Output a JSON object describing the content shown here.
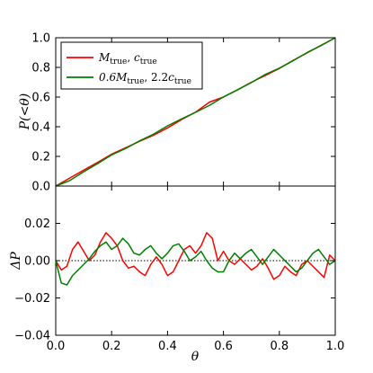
{
  "chart_data": [
    {
      "type": "line",
      "panel": "top",
      "ylabel": "P(<θ)",
      "xlim": [
        0.0,
        1.0
      ],
      "ylim": [
        0.0,
        1.0
      ],
      "xticks": [
        0.0,
        0.2,
        0.4,
        0.6,
        0.8,
        1.0
      ],
      "xtick_labels": [
        "",
        "",
        "",
        "",
        "",
        ""
      ],
      "yticks": [
        0.0,
        0.2,
        0.4,
        0.6,
        0.8,
        1.0
      ],
      "ytick_labels": [
        "0.0",
        "0.2",
        "0.4",
        "0.6",
        "0.8",
        "1.0"
      ],
      "legend_position": "top-left",
      "series": [
        {
          "name": "M_true, c_true",
          "legend_main": "M",
          "legend_sub": "true",
          "legend_sep": ", ",
          "legend_main2": "c",
          "legend_sub2": "true",
          "color": "#ff0000",
          "x": [
            0.0,
            0.05,
            0.1,
            0.15,
            0.2,
            0.25,
            0.3,
            0.35,
            0.4,
            0.45,
            0.5,
            0.55,
            0.6,
            0.65,
            0.7,
            0.75,
            0.8,
            0.85,
            0.9,
            0.95,
            1.0
          ],
          "y": [
            0.0,
            0.054,
            0.107,
            0.16,
            0.215,
            0.258,
            0.302,
            0.343,
            0.392,
            0.448,
            0.498,
            0.566,
            0.6,
            0.649,
            0.7,
            0.746,
            0.793,
            0.848,
            0.899,
            0.95,
            1.0
          ]
        },
        {
          "name": "0.6M_true, 2.2c_true",
          "legend_main": "0.6M",
          "legend_sub": "true",
          "legend_sep": ", 2.2",
          "legend_main2": "c",
          "legend_sub2": "true",
          "color": "#008000",
          "x": [
            0.0,
            0.05,
            0.1,
            0.15,
            0.2,
            0.25,
            0.3,
            0.35,
            0.4,
            0.45,
            0.5,
            0.55,
            0.6,
            0.65,
            0.7,
            0.75,
            0.8,
            0.85,
            0.9,
            0.95,
            1.0
          ],
          "y": [
            0.0,
            0.037,
            0.096,
            0.152,
            0.21,
            0.253,
            0.305,
            0.35,
            0.406,
            0.453,
            0.497,
            0.544,
            0.601,
            0.648,
            0.698,
            0.753,
            0.795,
            0.846,
            0.901,
            0.948,
            1.0
          ]
        }
      ]
    },
    {
      "type": "line",
      "panel": "bottom",
      "xlabel": "θ",
      "ylabel": "ΔP",
      "xlim": [
        0.0,
        1.0
      ],
      "ylim": [
        -0.04,
        0.04
      ],
      "xticks": [
        0.0,
        0.2,
        0.4,
        0.6,
        0.8,
        1.0
      ],
      "xtick_labels": [
        "0.0",
        "0.2",
        "0.4",
        "0.6",
        "0.8",
        "1.0"
      ],
      "yticks": [
        -0.04,
        -0.02,
        0.0,
        0.02
      ],
      "ytick_labels": [
        "−0.04",
        "−0.02",
        "0.00",
        "0.02"
      ],
      "reference_line": 0.0,
      "series": [
        {
          "name": "M_true, c_true",
          "color": "#ff0000",
          "x": [
            0.0,
            0.02,
            0.04,
            0.06,
            0.08,
            0.1,
            0.12,
            0.14,
            0.16,
            0.18,
            0.2,
            0.22,
            0.24,
            0.26,
            0.28,
            0.3,
            0.32,
            0.34,
            0.36,
            0.38,
            0.4,
            0.42,
            0.44,
            0.46,
            0.48,
            0.5,
            0.52,
            0.54,
            0.56,
            0.58,
            0.6,
            0.62,
            0.64,
            0.66,
            0.68,
            0.7,
            0.72,
            0.74,
            0.76,
            0.78,
            0.8,
            0.82,
            0.84,
            0.86,
            0.88,
            0.9,
            0.92,
            0.94,
            0.96,
            0.98,
            1.0
          ],
          "y": [
            0.0,
            -0.005,
            -0.003,
            0.006,
            0.01,
            0.005,
            0.0,
            0.003,
            0.01,
            0.015,
            0.012,
            0.008,
            0.0,
            -0.004,
            -0.003,
            -0.006,
            -0.008,
            -0.002,
            0.002,
            -0.002,
            -0.008,
            -0.006,
            0.0,
            0.006,
            0.008,
            0.004,
            0.008,
            0.015,
            0.012,
            0.0,
            0.005,
            0.0,
            -0.002,
            0.001,
            -0.002,
            -0.005,
            -0.003,
            0.001,
            -0.004,
            -0.01,
            -0.008,
            -0.003,
            -0.006,
            -0.008,
            -0.002,
            0.0,
            -0.003,
            -0.006,
            -0.009,
            0.003,
            0.0
          ]
        },
        {
          "name": "0.6M_true, 2.2c_true",
          "color": "#008000",
          "x": [
            0.0,
            0.02,
            0.04,
            0.06,
            0.08,
            0.1,
            0.12,
            0.14,
            0.16,
            0.18,
            0.2,
            0.22,
            0.24,
            0.26,
            0.28,
            0.3,
            0.32,
            0.34,
            0.36,
            0.38,
            0.4,
            0.42,
            0.44,
            0.46,
            0.48,
            0.5,
            0.52,
            0.54,
            0.56,
            0.58,
            0.6,
            0.62,
            0.64,
            0.66,
            0.68,
            0.7,
            0.72,
            0.74,
            0.76,
            0.78,
            0.8,
            0.82,
            0.84,
            0.86,
            0.88,
            0.9,
            0.92,
            0.94,
            0.96,
            0.98,
            1.0
          ],
          "y": [
            0.0,
            -0.012,
            -0.013,
            -0.008,
            -0.005,
            -0.002,
            0.001,
            0.005,
            0.008,
            0.01,
            0.006,
            0.008,
            0.012,
            0.009,
            0.004,
            0.003,
            0.006,
            0.008,
            0.004,
            0.001,
            0.004,
            0.008,
            0.009,
            0.005,
            0.0,
            0.002,
            0.005,
            0.0,
            -0.004,
            -0.006,
            -0.006,
            0.0,
            0.004,
            0.001,
            0.004,
            0.006,
            0.002,
            -0.002,
            0.002,
            0.006,
            0.003,
            0.0,
            -0.003,
            -0.006,
            -0.004,
            0.0,
            0.004,
            0.006,
            0.002,
            -0.002,
            0.0
          ]
        }
      ]
    }
  ]
}
